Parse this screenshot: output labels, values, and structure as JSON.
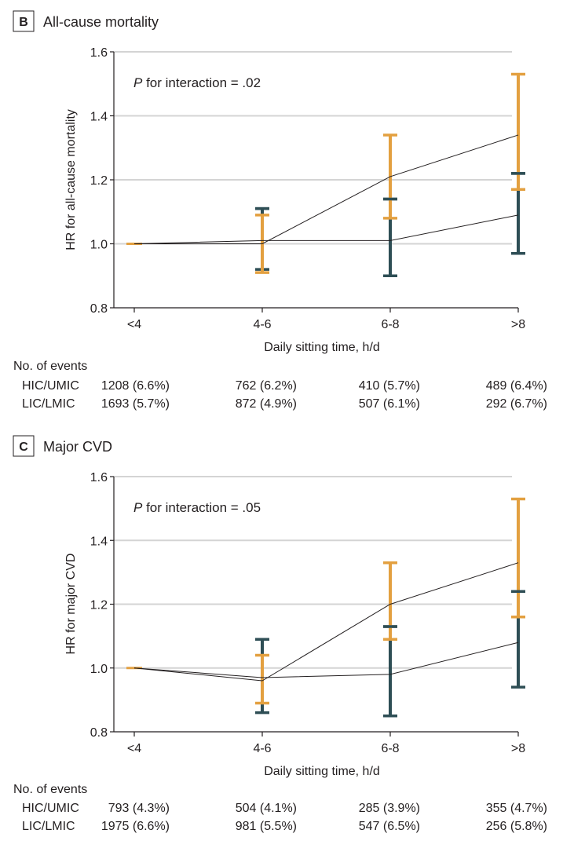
{
  "colors": {
    "series_orange": "#E3A040",
    "series_teal": "#2E4E55",
    "line": "#231f20",
    "grid": "#d4d4d4",
    "axis": "#231f20"
  },
  "chart_data": [
    {
      "type": "line",
      "panel_letter": "B",
      "title": "All-cause mortality",
      "annotation": {
        "italic": "P",
        "text": " for interaction = .02"
      },
      "xlabel": "Daily sitting time, h/d",
      "ylabel": "HR for all-cause mortality",
      "ylim": [
        0.8,
        1.6
      ],
      "yticks": [
        "0.8",
        "1.0",
        "1.2",
        "1.4",
        "1.6"
      ],
      "ytick_values": [
        0.8,
        1.0,
        1.2,
        1.4,
        1.6
      ],
      "grid": true,
      "categories": [
        "<4",
        "4-6",
        "6-8",
        ">8"
      ],
      "series": [
        {
          "name": "orange series",
          "color": "#E3A040",
          "values": [
            1.0,
            1.0,
            1.21,
            1.34
          ],
          "ci_low": [
            null,
            0.91,
            1.08,
            1.17
          ],
          "ci_high": [
            null,
            1.09,
            1.34,
            1.53
          ]
        },
        {
          "name": "teal series",
          "color": "#2E4E55",
          "values": [
            1.0,
            1.01,
            1.01,
            1.09
          ],
          "ci_low": [
            null,
            0.92,
            0.9,
            0.97
          ],
          "ci_high": [
            null,
            1.11,
            1.14,
            1.22
          ]
        }
      ],
      "events": {
        "heading": "No. of events",
        "rows": [
          {
            "label": "HIC/UMIC",
            "cells": [
              "1208 (6.6%)",
              "762 (6.2%)",
              "410 (5.7%)",
              "489 (6.4%)"
            ]
          },
          {
            "label": "LIC/LMIC",
            "cells": [
              "1693 (5.7%)",
              "872 (4.9%)",
              "507 (6.1%)",
              "292 (6.7%)"
            ]
          }
        ]
      }
    },
    {
      "type": "line",
      "panel_letter": "C",
      "title": "Major CVD",
      "annotation": {
        "italic": "P",
        "text": " for interaction = .05"
      },
      "xlabel": "Daily sitting time, h/d",
      "ylabel": "HR for major CVD",
      "ylim": [
        0.8,
        1.6
      ],
      "yticks": [
        "0.8",
        "1.0",
        "1.2",
        "1.4",
        "1.6"
      ],
      "ytick_values": [
        0.8,
        1.0,
        1.2,
        1.4,
        1.6
      ],
      "grid": true,
      "categories": [
        "<4",
        "4-6",
        "6-8",
        ">8"
      ],
      "series": [
        {
          "name": "orange series",
          "color": "#E3A040",
          "values": [
            1.0,
            0.96,
            1.2,
            1.33
          ],
          "ci_low": [
            null,
            0.89,
            1.09,
            1.16
          ],
          "ci_high": [
            null,
            1.04,
            1.33,
            1.53
          ]
        },
        {
          "name": "teal series",
          "color": "#2E4E55",
          "values": [
            1.0,
            0.97,
            0.98,
            1.08
          ],
          "ci_low": [
            null,
            0.86,
            0.85,
            0.94
          ],
          "ci_high": [
            null,
            1.09,
            1.13,
            1.24
          ]
        }
      ],
      "events": {
        "heading": "No. of events",
        "rows": [
          {
            "label": "HIC/UMIC",
            "cells": [
              "793 (4.3%)",
              "504 (4.1%)",
              "285 (3.9%)",
              "355 (4.7%)"
            ]
          },
          {
            "label": "LIC/LMIC",
            "cells": [
              "1975 (6.6%)",
              "981 (5.5%)",
              "547 (6.5%)",
              "256 (5.8%)"
            ]
          }
        ]
      }
    }
  ]
}
